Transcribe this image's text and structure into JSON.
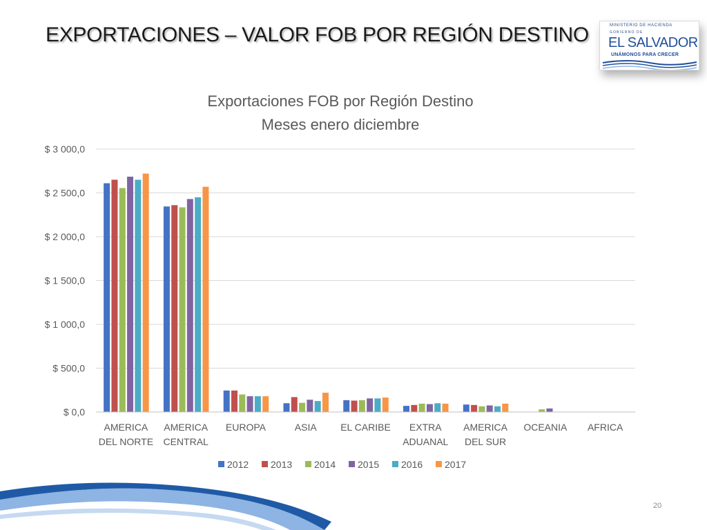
{
  "slide": {
    "title": "EXPORTACIONES – VALOR FOB POR REGIÓN DESTINO",
    "page_number": "20"
  },
  "logo": {
    "ministry": "MINISTERIO DE HACIENDA",
    "government": "GOBIERNO DE",
    "country": "EL SALVADOR",
    "motto": "UNÁMONOS PARA CRECER"
  },
  "colors": {
    "series": [
      "#4472C4",
      "#C0504D",
      "#9BBB59",
      "#8064A2",
      "#4BACC6",
      "#F79646"
    ],
    "gridline": "#d9d9d9",
    "axis_text": "#595959",
    "wave_blue": "#1f5aa6",
    "wave_light": "#8db4e2"
  },
  "chart_data": {
    "type": "bar",
    "title": "Exportaciones FOB por Región Destino",
    "subtitle": "Meses enero diciembre",
    "categories": [
      [
        "AMERICA",
        "DEL NORTE"
      ],
      [
        "AMERICA",
        "CENTRAL"
      ],
      [
        "EUROPA"
      ],
      [
        "ASIA"
      ],
      [
        "EL CARIBE"
      ],
      [
        "EXTRA",
        "ADUANAL"
      ],
      [
        "AMERICA",
        "DEL SUR"
      ],
      [
        "OCEANIA"
      ],
      [
        "AFRICA"
      ]
    ],
    "ylim": [
      0,
      3000
    ],
    "yticks": [
      0,
      500,
      1000,
      1500,
      2000,
      2500,
      3000
    ],
    "ytick_labels": [
      "$ 0,0",
      "$ 500,0",
      "$ 1 000,0",
      "$ 1 500,0",
      "$ 2 000,0",
      "$ 2 500,0",
      "$ 3 000,0"
    ],
    "grid": true,
    "legend_position": "bottom",
    "series": [
      {
        "name": "2012",
        "values": [
          2610,
          2345,
          245,
          100,
          135,
          70,
          85,
          3,
          2
        ]
      },
      {
        "name": "2013",
        "values": [
          2650,
          2360,
          245,
          170,
          130,
          80,
          80,
          3,
          2
        ]
      },
      {
        "name": "2014",
        "values": [
          2555,
          2335,
          200,
          105,
          135,
          95,
          65,
          30,
          2
        ]
      },
      {
        "name": "2015",
        "values": [
          2685,
          2430,
          180,
          140,
          155,
          90,
          75,
          40,
          2
        ]
      },
      {
        "name": "2016",
        "values": [
          2650,
          2450,
          180,
          125,
          155,
          100,
          65,
          3,
          2
        ]
      },
      {
        "name": "2017",
        "values": [
          2720,
          2570,
          180,
          220,
          165,
          95,
          95,
          3,
          2
        ]
      }
    ]
  }
}
